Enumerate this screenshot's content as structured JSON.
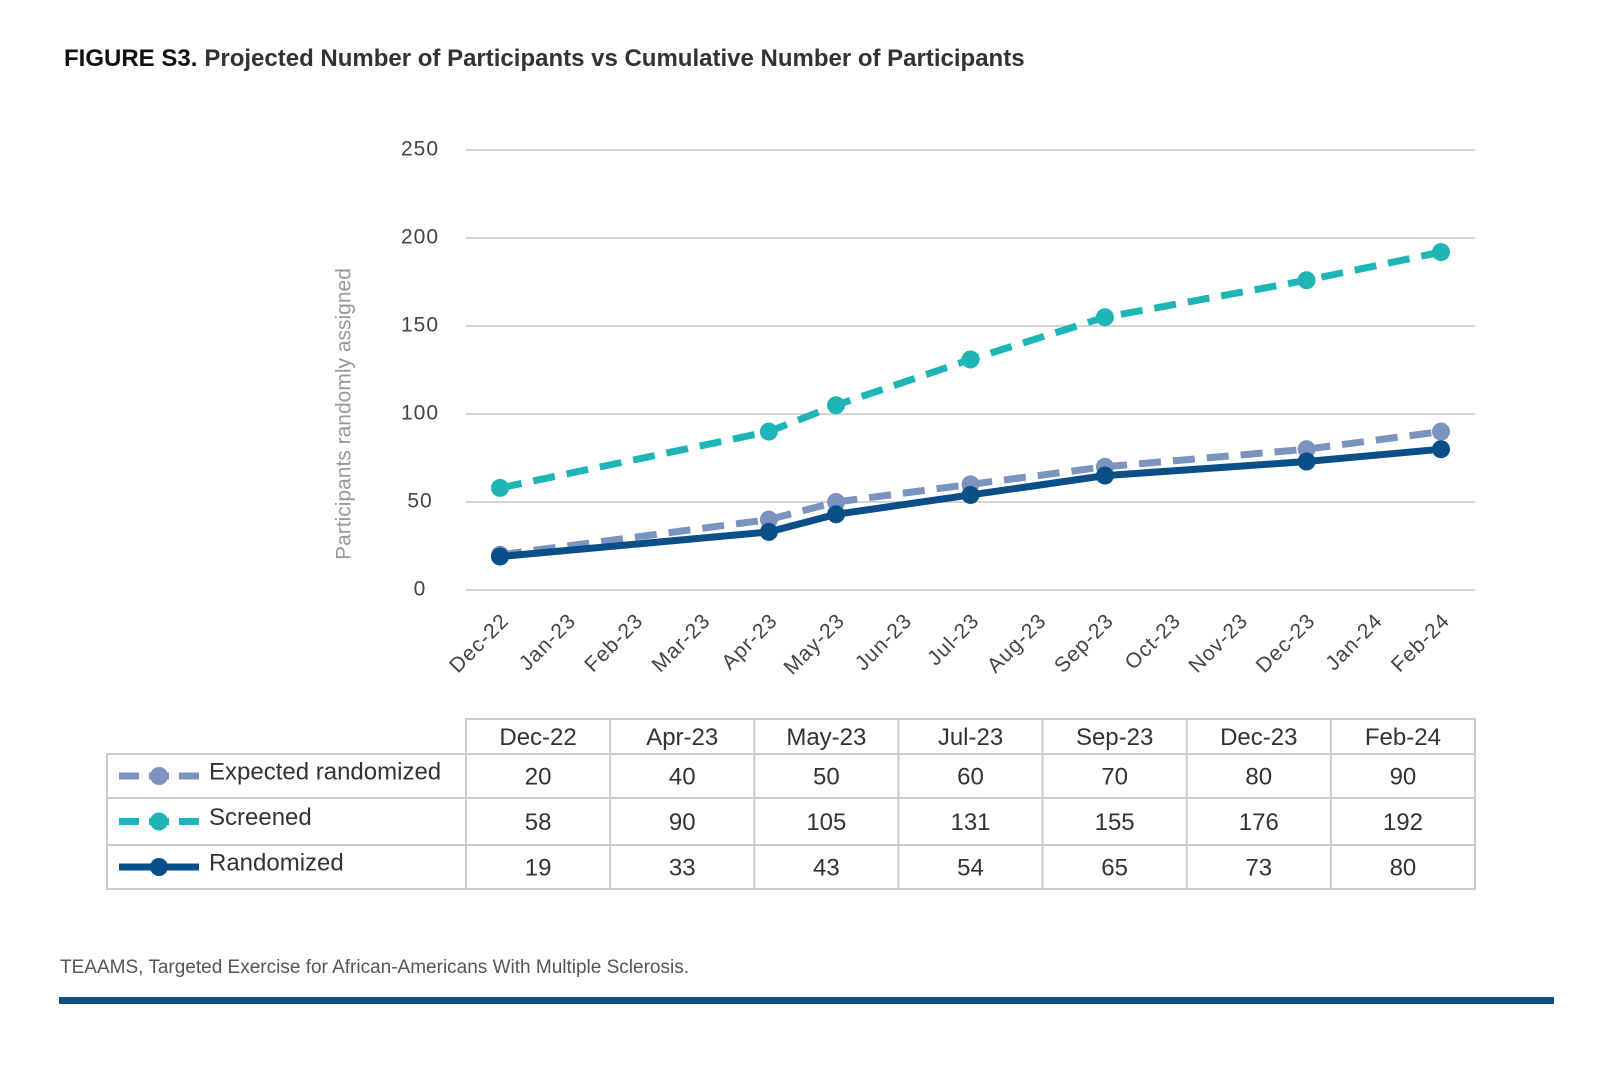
{
  "chart_data": {
    "type": "line",
    "figure_label": "FIGURE S3.",
    "title": "Projected Number of Participants vs Cumulative Number of Participants",
    "y_label": "Participants randomly assigned",
    "categories": [
      "Dec-22",
      "Jan-23",
      "Feb-23",
      "Mar-23",
      "Apr-23",
      "May-23",
      "Jun-23",
      "Jul-23",
      "Aug-23",
      "Sep-23",
      "Oct-23",
      "Nov-23",
      "Dec-23",
      "Jan-24",
      "Feb-24"
    ],
    "x": [
      "Dec-22",
      "Apr-23",
      "May-23",
      "Jul-23",
      "Sep-23",
      "Dec-23",
      "Feb-24"
    ],
    "series": [
      {
        "name": "Expected randomized",
        "color": "#7b93bf",
        "line_style": "dashed",
        "values": [
          20,
          40,
          50,
          60,
          70,
          80,
          90
        ]
      },
      {
        "name": "Screened",
        "color": "#1db5b5",
        "line_style": "dashed",
        "values": [
          58,
          90,
          105,
          131,
          155,
          176,
          192
        ]
      },
      {
        "name": "Randomized",
        "color": "#0b4f88",
        "line_style": "solid",
        "values": [
          19,
          33,
          43,
          54,
          65,
          73,
          80
        ]
      }
    ],
    "ylim": [
      0,
      250
    ],
    "yticks": [
      0,
      50,
      100,
      150,
      200,
      250
    ],
    "grid": true,
    "footnote": "TEAAMS, Targeted Exercise for African-Americans With Multiple Sclerosis."
  }
}
